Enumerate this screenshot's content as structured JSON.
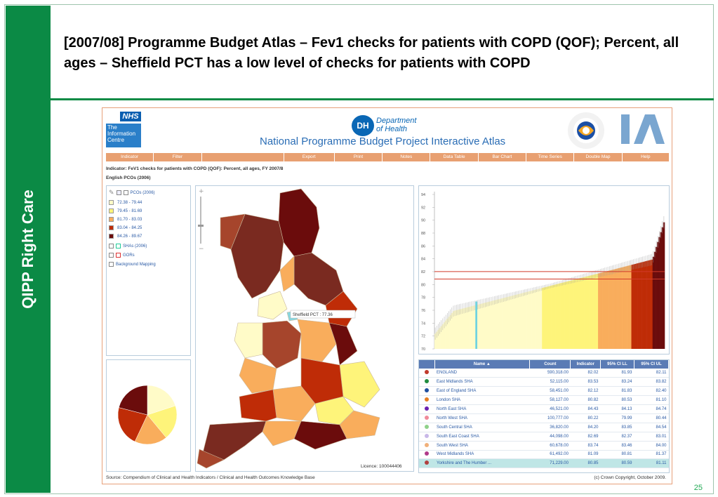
{
  "slide": {
    "title": "[2007/08] Programme Budget Atlas – Fev1 checks for patients with COPD (QOF); Percent, all ages – Sheffield PCT has a low level of checks for patients with COPD",
    "side_label": "QIPP Right Care",
    "page_number": "25",
    "accent_color": "#0b8a45"
  },
  "atlas": {
    "nhs_label": "NHS",
    "ic_label": "The Information Centre",
    "dh_initials": "DH",
    "dh_name_line1": "Department",
    "dh_name_line2": "of Health",
    "heading": "National Programme Budget Project Interactive Atlas",
    "nav": [
      "Indicator",
      "Filter",
      "Export",
      "Print",
      "Notes",
      "Data Table",
      "Bar Chart",
      "Time Series",
      "Double Map",
      "Help"
    ],
    "indicator_text": "Indicator: FeV1 checks for patients with COPD (QOF): Percent, all ages, FY 2007/8",
    "geography_text": "English PCOs (2006)",
    "legend": {
      "layer_label": "PCOs (2006)",
      "classes": [
        {
          "range": "72.38 - 79.44",
          "color": "#fffbc8"
        },
        {
          "range": "79.45 - 81.69",
          "color": "#fef47a"
        },
        {
          "range": "81.70 - 83.03",
          "color": "#f9ad5c"
        },
        {
          "range": "83.04 - 84.25",
          "color": "#bf2c07"
        },
        {
          "range": "84.26 - 89.67",
          "color": "#6b0c0c"
        }
      ],
      "sha_label": "SHAs (2006)",
      "gor_label": "GORs",
      "background_label": "Background Mapping"
    },
    "map_tooltip": "Sheffield PCT : 77.36",
    "licence": "Licence: 100044406",
    "source": "Source: Compendium of Clinical and Health Indicators / Clinical and Health Outcomes Knowledge Base",
    "copyright": "(c) Crown Copyright, October 2009.",
    "table": {
      "headers": [
        "Name",
        "Count",
        "Indicator",
        "95% CI LL",
        "95% CI UL"
      ],
      "rows": [
        {
          "dot": "#c0392b",
          "name": "ENGLAND",
          "count": "590,318.00",
          "indicator": "82.02",
          "ll": "81.93",
          "ul": "82.11"
        },
        {
          "dot": "#1f8c3f",
          "name": "East Midlands SHA",
          "count": "52,115.00",
          "indicator": "83.53",
          "ll": "83.24",
          "ul": "83.82"
        },
        {
          "dot": "#1f4fa0",
          "name": "East of England SHA",
          "count": "58,451.00",
          "indicator": "82.12",
          "ll": "81.83",
          "ul": "82.40"
        },
        {
          "dot": "#e67e22",
          "name": "London SHA",
          "count": "58,127.00",
          "indicator": "80.82",
          "ll": "80.53",
          "ul": "81.10"
        },
        {
          "dot": "#6a1fb0",
          "name": "North East SHA",
          "count": "46,521.00",
          "indicator": "84.43",
          "ll": "84.13",
          "ul": "84.74"
        },
        {
          "dot": "#f08a9a",
          "name": "North West SHA",
          "count": "100,777.00",
          "indicator": "80.22",
          "ll": "79.99",
          "ul": "80.44"
        },
        {
          "dot": "#8fd18a",
          "name": "South Central SHA",
          "count": "36,820.00",
          "indicator": "84.20",
          "ll": "83.85",
          "ul": "84.54"
        },
        {
          "dot": "#c8b8e8",
          "name": "South East Coast SHA",
          "count": "44,098.00",
          "indicator": "82.69",
          "ll": "82.37",
          "ul": "83.01"
        },
        {
          "dot": "#f0b07a",
          "name": "South West SHA",
          "count": "60,678.00",
          "indicator": "83.74",
          "ll": "83.46",
          "ul": "84.00"
        },
        {
          "dot": "#b03a8a",
          "name": "West Midlands SHA",
          "count": "61,492.00",
          "indicator": "81.09",
          "ll": "80.81",
          "ul": "81.37"
        },
        {
          "dot": "#b04040",
          "name": "Yorkshire and The Humber ...",
          "count": "71,229.00",
          "indicator": "80.85",
          "ll": "80.59",
          "ul": "81.11"
        }
      ]
    }
  },
  "chart_data": [
    {
      "type": "bar",
      "title": "",
      "xlabel": "",
      "ylabel": "",
      "ylim": [
        70,
        94
      ],
      "yticks": [
        "70",
        "72",
        "74",
        "76",
        "78",
        "80",
        "82",
        "84",
        "86",
        "88",
        "90",
        "92",
        "94"
      ],
      "reference_lines": [
        82.02,
        80.85
      ],
      "class_breaks": [
        72.38,
        79.44,
        81.69,
        83.03,
        84.25,
        89.67
      ],
      "class_colors": [
        "#fffbc8",
        "#fef47a",
        "#f9ad5c",
        "#bf2c07",
        "#6b0c0c"
      ],
      "highlight": {
        "name": "Sheffield PCT",
        "value": 77.36
      },
      "n_bars": 152,
      "value_range": [
        72.38,
        89.67
      ]
    },
    {
      "type": "pie",
      "title": "",
      "slices": [
        {
          "label": "72.38 - 79.44",
          "value": 20,
          "color": "#fffbc8"
        },
        {
          "label": "79.45 - 81.69",
          "value": 19,
          "color": "#fef47a"
        },
        {
          "label": "81.70 - 83.03",
          "value": 18,
          "color": "#f9ad5c"
        },
        {
          "label": "83.04 - 84.25",
          "value": 22,
          "color": "#bf2c07"
        },
        {
          "label": "84.26 - 89.67",
          "value": 21,
          "color": "#6b0c0c"
        }
      ]
    }
  ]
}
